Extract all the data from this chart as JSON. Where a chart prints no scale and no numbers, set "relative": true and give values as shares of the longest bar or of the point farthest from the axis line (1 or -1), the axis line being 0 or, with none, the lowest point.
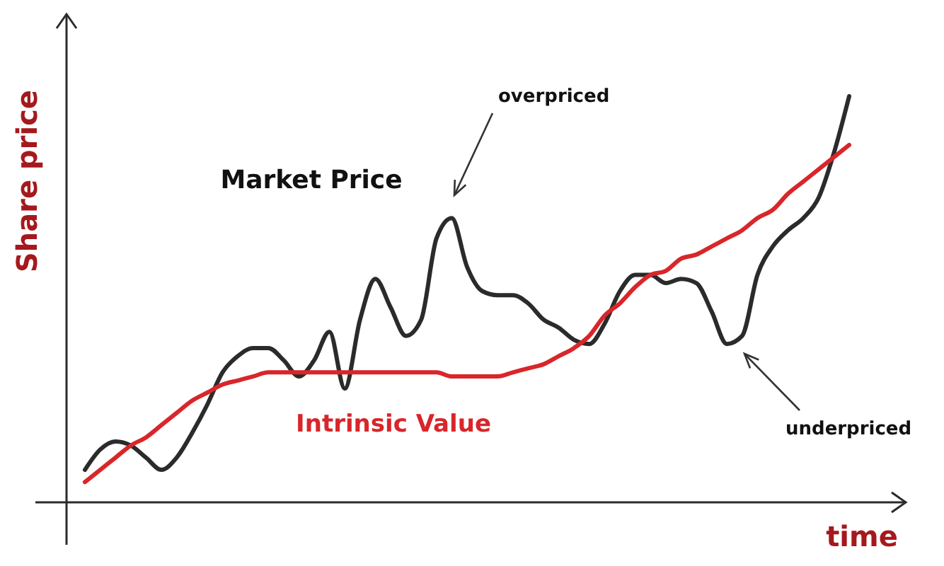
{
  "chart_data": {
    "type": "line",
    "relative": true,
    "xlabel": "time",
    "ylabel": "Share price",
    "marker": "none",
    "categories": [
      null,
      null,
      null,
      null,
      null,
      null,
      null,
      null,
      null,
      null,
      null,
      null,
      null,
      null,
      null,
      null,
      null,
      null,
      null,
      null,
      null,
      null,
      null,
      null,
      null,
      null,
      null,
      null,
      null,
      null,
      null,
      null,
      null,
      null,
      null,
      null,
      null,
      null,
      null,
      null,
      null,
      null,
      null,
      null,
      null,
      null,
      null,
      null,
      null,
      null,
      null
    ],
    "series": [
      {
        "name": "Market Price",
        "color": "#2b2b2b",
        "values": [
          0.08,
          0.13,
          0.15,
          0.14,
          0.11,
          0.08,
          0.11,
          0.17,
          0.24,
          0.32,
          0.36,
          0.38,
          0.38,
          0.35,
          0.31,
          0.35,
          0.42,
          0.28,
          0.45,
          0.55,
          0.48,
          0.41,
          0.45,
          0.65,
          0.7,
          0.58,
          0.52,
          0.51,
          0.51,
          0.49,
          0.45,
          0.43,
          0.4,
          0.39,
          0.44,
          0.52,
          0.56,
          0.56,
          0.54,
          0.55,
          0.54,
          0.47,
          0.39,
          0.41,
          0.56,
          0.63,
          0.67,
          0.7,
          0.75,
          0.86,
          1
        ]
      },
      {
        "name": "Intrinsic Value",
        "color": "#d8262a",
        "values": [
          0.05,
          0.08,
          0.11,
          0.14,
          0.16,
          0.19,
          0.22,
          0.25,
          0.27,
          0.29,
          0.3,
          0.31,
          0.32,
          0.32,
          0.32,
          0.32,
          0.32,
          0.32,
          0.32,
          0.32,
          0.32,
          0.32,
          0.32,
          0.32,
          0.31,
          0.31,
          0.31,
          0.31,
          0.32,
          0.33,
          0.34,
          0.36,
          0.38,
          0.41,
          0.46,
          0.49,
          0.53,
          0.56,
          0.57,
          0.6,
          0.61,
          0.63,
          0.65,
          0.67,
          0.7,
          0.72,
          0.76,
          0.79,
          0.82,
          0.85,
          0.88
        ]
      }
    ],
    "annotations": [
      "overpriced",
      "underpriced"
    ]
  }
}
